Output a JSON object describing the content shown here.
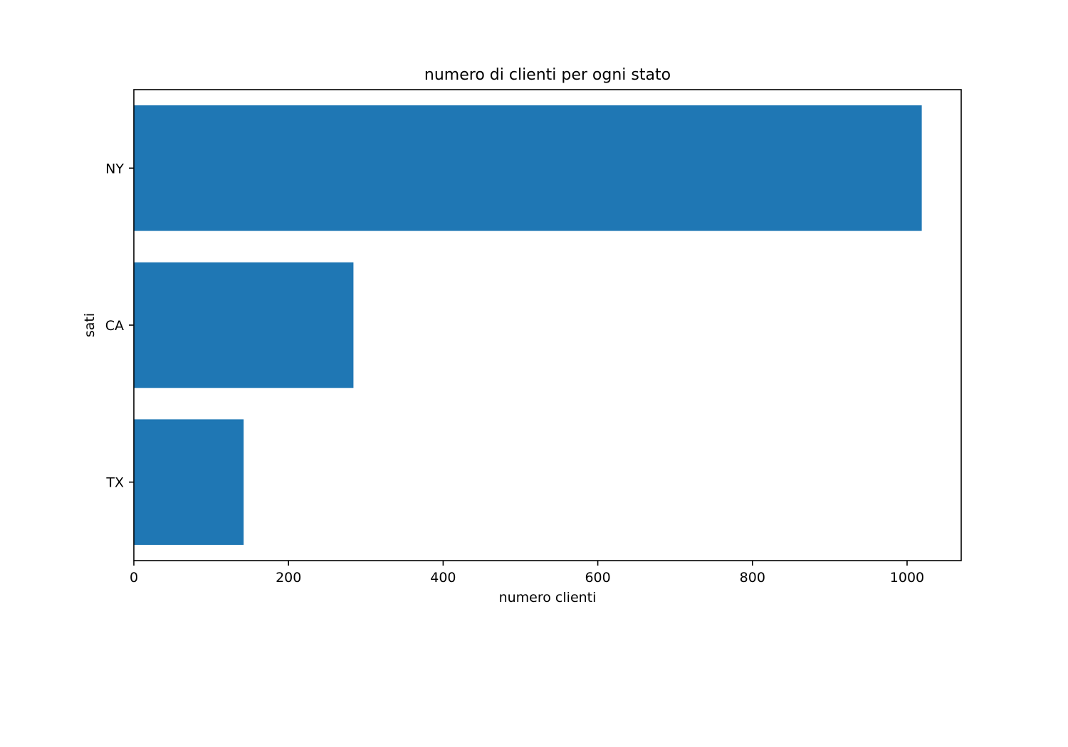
{
  "colors": {
    "bar": "#1f77b4",
    "axis": "#000000",
    "background": "#ffffff"
  },
  "chart_data": {
    "type": "bar",
    "orientation": "horizontal",
    "title": "numero di clienti per ogni stato",
    "xlabel": "numero clienti",
    "ylabel": "sati",
    "categories": [
      "NY",
      "CA",
      "TX"
    ],
    "values": [
      1019,
      284,
      142
    ],
    "xlim": [
      0,
      1070
    ],
    "xticks": [
      0,
      200,
      400,
      600,
      800,
      1000
    ],
    "grid": false,
    "legend": "none"
  }
}
